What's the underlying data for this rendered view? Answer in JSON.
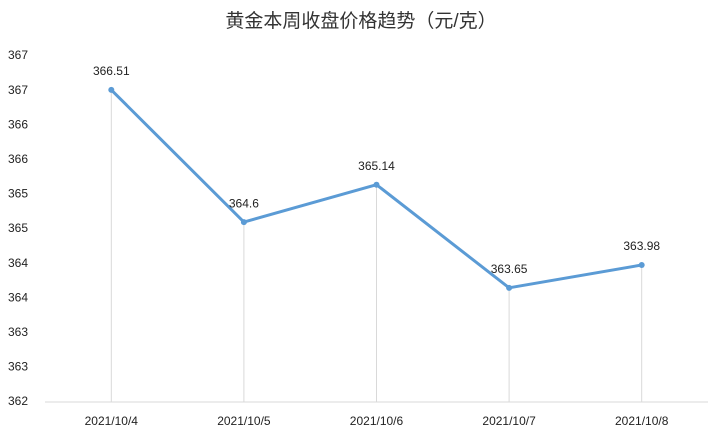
{
  "chart_data": {
    "type": "line",
    "title": "黄金本周收盘价格趋势（元/克）",
    "categories": [
      "2021/10/4",
      "2021/10/5",
      "2021/10/6",
      "2021/10/7",
      "2021/10/8"
    ],
    "series": [
      {
        "name": "收盘价格",
        "color": "#5b9bd5",
        "values": [
          366.51,
          364.6,
          365.14,
          363.65,
          363.98
        ]
      }
    ],
    "ylim": [
      362,
      367
    ],
    "yticks": [
      362,
      {
        "value": 362.5,
        "label": "363"
      },
      363,
      {
        "value": 363.5,
        "label": "364"
      },
      364,
      {
        "value": 364.5,
        "label": "365"
      },
      365,
      {
        "value": 365.5,
        "label": "366"
      },
      366,
      {
        "value": 366.5,
        "label": "367"
      },
      367
    ],
    "drop_lines": true,
    "grid": false
  }
}
